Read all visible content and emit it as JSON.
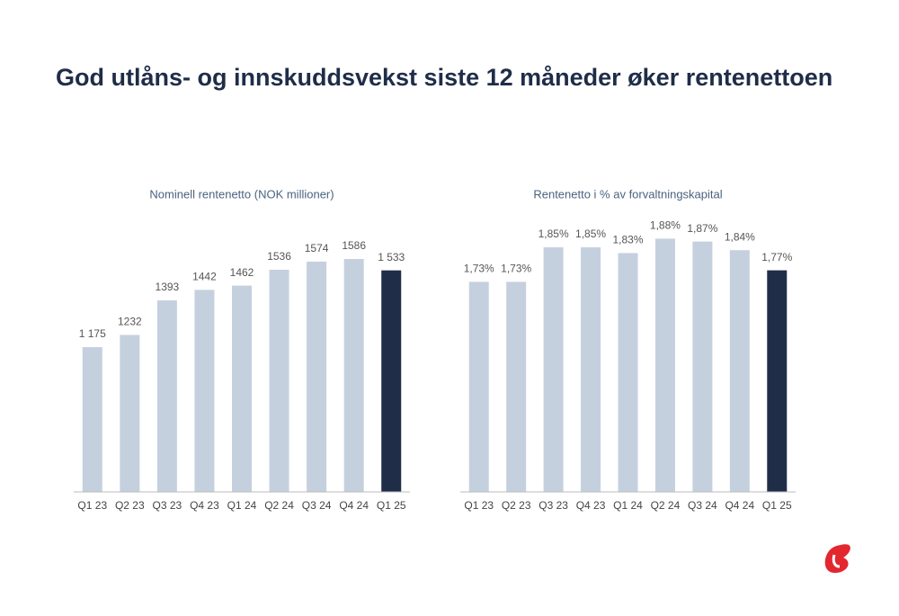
{
  "title": "God utlåns- og innskuddsvekst siste 12 måneder øker rentenettoen",
  "chart_data": [
    {
      "type": "bar",
      "title": "Nominell rentenetto (NOK millioner)",
      "categories": [
        "Q1 23",
        "Q2 23",
        "Q3 23",
        "Q4 23",
        "Q1 24",
        "Q2 24",
        "Q3 24",
        "Q4 24",
        "Q1 25"
      ],
      "values": [
        1175,
        1232,
        1393,
        1442,
        1462,
        1536,
        1574,
        1586,
        1533
      ],
      "value_labels": [
        "1 175",
        "1232",
        "1393",
        "1442",
        "1462",
        "1536",
        "1574",
        "1586",
        "1 533"
      ],
      "colors": [
        "#c5d0df",
        "#c5d0df",
        "#c5d0df",
        "#c5d0df",
        "#c5d0df",
        "#c5d0df",
        "#c5d0df",
        "#c5d0df",
        "#1f2d48"
      ],
      "ylim": [
        500,
        1800
      ]
    },
    {
      "type": "bar",
      "title": "Rentenetto i % av forvaltningskapital",
      "categories": [
        "Q1 23",
        "Q2 23",
        "Q3 23",
        "Q4 23",
        "Q1 24",
        "Q2 24",
        "Q3 24",
        "Q4 24",
        "Q1 25"
      ],
      "values": [
        1.73,
        1.73,
        1.85,
        1.85,
        1.83,
        1.88,
        1.87,
        1.84,
        1.77
      ],
      "value_labels": [
        "1,73%",
        "1,73%",
        "1,85%",
        "1,85%",
        "1,83%",
        "1,88%",
        "1,87%",
        "1,84%",
        "1,77%"
      ],
      "colors": [
        "#c5d0df",
        "#c5d0df",
        "#c5d0df",
        "#c5d0df",
        "#c5d0df",
        "#c5d0df",
        "#c5d0df",
        "#c5d0df",
        "#1f2d48"
      ],
      "ylim": [
        1.0,
        2.0
      ]
    }
  ]
}
